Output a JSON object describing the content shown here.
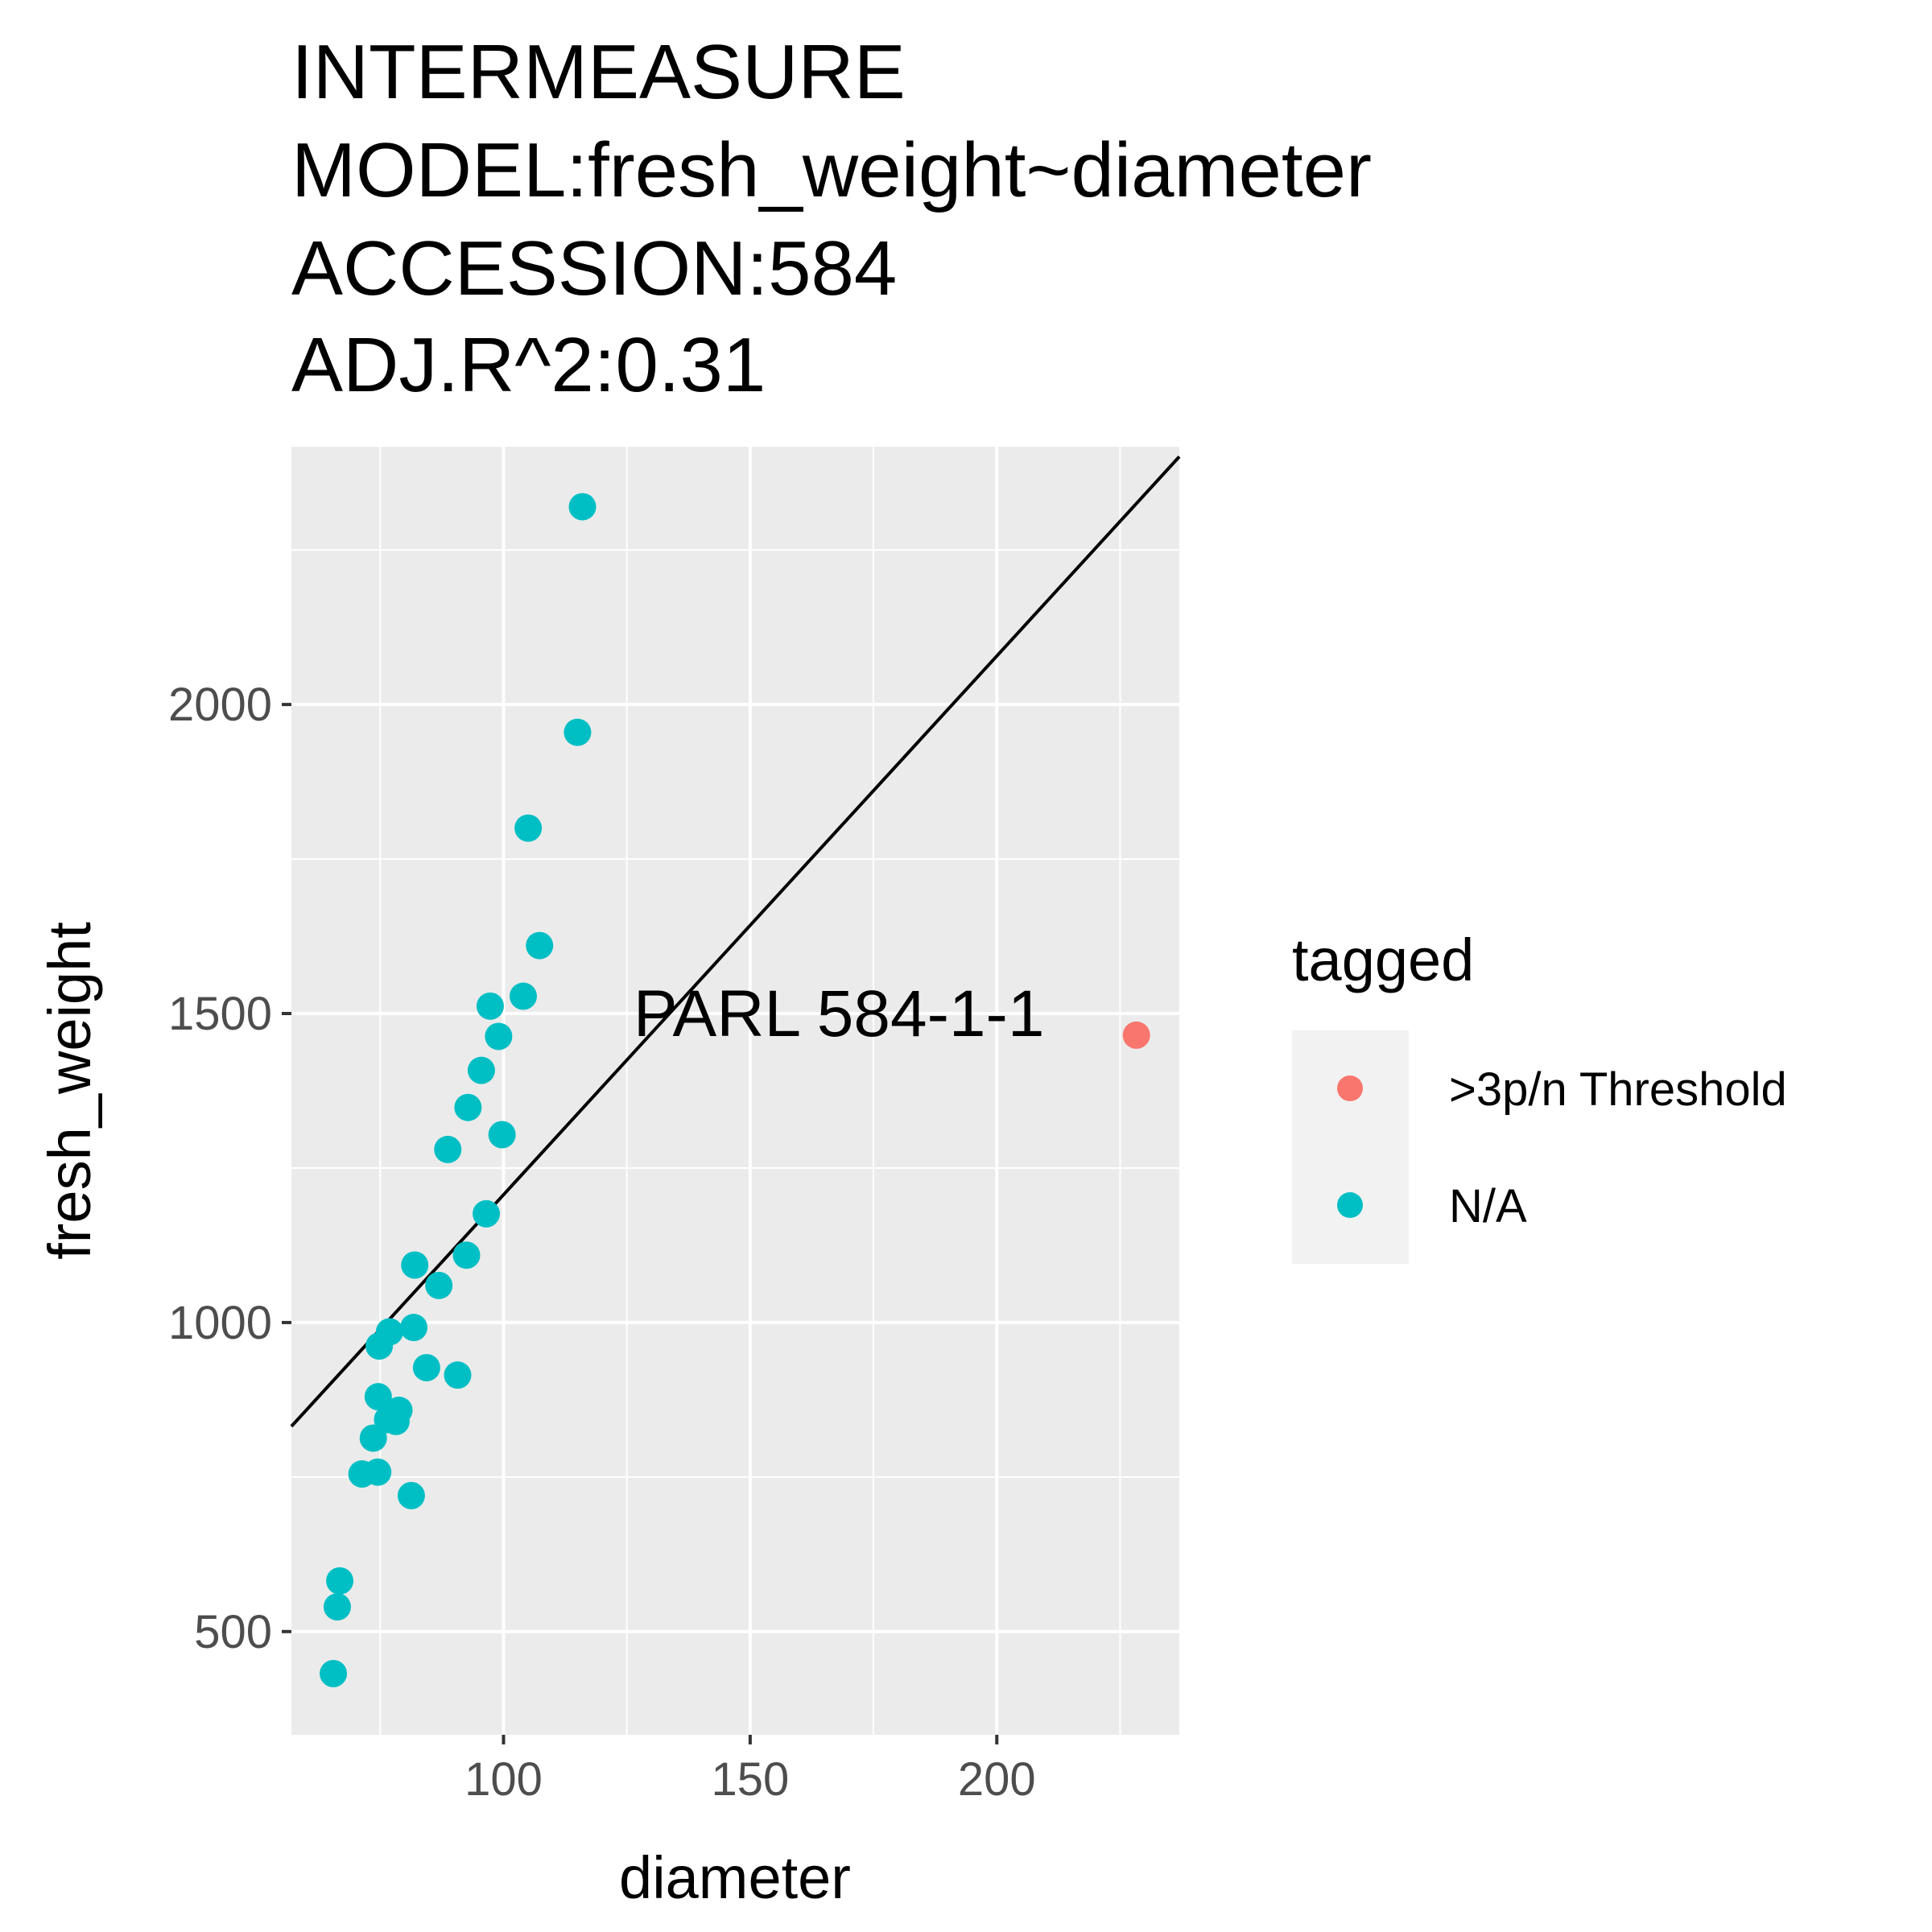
{
  "chart_data": {
    "type": "scatter",
    "title_lines": [
      "INTERMEASURE",
      "MODEL:fresh_weight~diameter",
      "ACCESSION:584",
      "ADJ.R^2:0.31"
    ],
    "xlabel": "diameter",
    "ylabel": "fresh_weight",
    "xlim": [
      57,
      237
    ],
    "ylim": [
      333,
      2417
    ],
    "x_ticks": [
      100,
      150,
      200
    ],
    "x_tick_labels": [
      "100",
      "150",
      "200"
    ],
    "x_minor": [
      75,
      125,
      175,
      225
    ],
    "y_ticks": [
      500,
      1000,
      1500,
      2000
    ],
    "y_tick_labels": [
      "500",
      "1000",
      "1500",
      "2000"
    ],
    "y_minor": [
      750,
      1250,
      1750,
      2250
    ],
    "grid": true,
    "legend": {
      "title": "tagged",
      "position": "right",
      "entries": [
        {
          "label": ">3p/n Threshold",
          "color": "#F8766D"
        },
        {
          "label": "N/A",
          "color": "#00BFC4"
        }
      ]
    },
    "colors": {
      "panel": "#EBEBEB",
      "grid": "#FFFFFF",
      "legend_key_bg": "#F2F2F2",
      "fit_line": "#000000",
      "tick": "#333333"
    },
    "fit_line": {
      "x": [
        57,
        237
      ],
      "y": [
        832,
        2401
      ]
    },
    "annotations": [
      {
        "text": "PARL 584-1-1",
        "x": 168,
        "y": 1500
      }
    ],
    "series": [
      {
        "name": ">3p/n Threshold",
        "color": "#F8766D",
        "points": [
          [
            228.3,
            1465
          ]
        ]
      },
      {
        "name": "N/A",
        "color": "#00BFC4",
        "points": [
          [
            116,
            2320
          ],
          [
            115,
            1955
          ],
          [
            105,
            1800
          ],
          [
            107.3,
            1610
          ],
          [
            104,
            1528
          ],
          [
            97.3,
            1512
          ],
          [
            99,
            1463
          ],
          [
            95.5,
            1408
          ],
          [
            92.8,
            1348
          ],
          [
            99.7,
            1304
          ],
          [
            88.7,
            1280
          ],
          [
            96.5,
            1176
          ],
          [
            92.5,
            1109
          ],
          [
            82,
            1093
          ],
          [
            86.9,
            1060
          ],
          [
            76.9,
            985
          ],
          [
            81.8,
            992
          ],
          [
            74.8,
            962
          ],
          [
            84.4,
            927
          ],
          [
            90.7,
            915
          ],
          [
            74.6,
            880
          ],
          [
            78.8,
            858
          ],
          [
            78.2,
            840
          ],
          [
            76.5,
            843
          ],
          [
            73.6,
            813
          ],
          [
            74.5,
            758
          ],
          [
            71.3,
            755
          ],
          [
            81.3,
            720
          ],
          [
            66.8,
            582
          ],
          [
            66.3,
            540
          ],
          [
            65.5,
            432
          ]
        ]
      }
    ]
  }
}
